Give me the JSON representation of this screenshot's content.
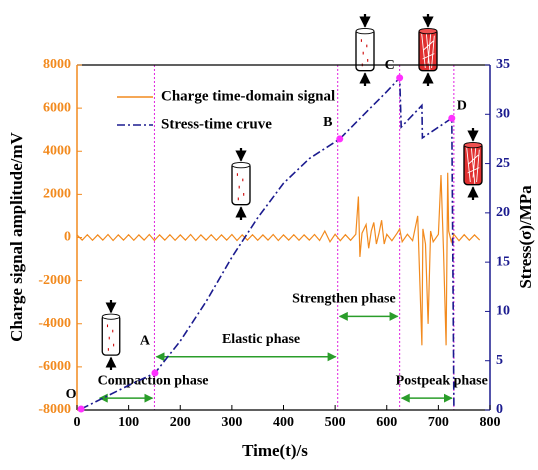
{
  "chart_data": {
    "type": "line",
    "x_label": "Time(t)/s",
    "y_label": "Charge signal amplitude/mV",
    "y2_label": "Stress(σ)/MPa",
    "xlim": [
      0,
      800
    ],
    "xticks": [
      0,
      100,
      200,
      300,
      400,
      500,
      600,
      700,
      800
    ],
    "ylim": [
      -8000,
      8000
    ],
    "yticks": [
      -8000,
      -6000,
      -4000,
      -2000,
      0,
      2000,
      4000,
      6000,
      8000
    ],
    "y2lim": [
      0,
      35
    ],
    "y2ticks": [
      0,
      5,
      10,
      15,
      20,
      25,
      30,
      35
    ],
    "legend": "upper left",
    "series": [
      {
        "name": "Charge time-domain signal",
        "color": "#f28a1e",
        "dash": "solid",
        "x": [
          0,
          10,
          20,
          30,
          40,
          50,
          60,
          70,
          80,
          90,
          100,
          110,
          120,
          130,
          140,
          150,
          160,
          170,
          180,
          190,
          200,
          210,
          220,
          230,
          240,
          250,
          260,
          270,
          280,
          290,
          300,
          310,
          320,
          330,
          340,
          350,
          360,
          370,
          380,
          390,
          400,
          410,
          420,
          430,
          440,
          450,
          460,
          470,
          480,
          490,
          500,
          510,
          520,
          530,
          540,
          545,
          548,
          552,
          560,
          565,
          570,
          575,
          580,
          585,
          590,
          595,
          600,
          610,
          620,
          625,
          630,
          640,
          650,
          660,
          668,
          670,
          675,
          680,
          685,
          690,
          700,
          705,
          710,
          715,
          718,
          720,
          725,
          730,
          740,
          750,
          760,
          770,
          780
        ],
        "values": [
          120,
          -120,
          130,
          -130,
          120,
          -120,
          140,
          -140,
          120,
          -120,
          130,
          -130,
          120,
          -120,
          140,
          -140,
          120,
          -120,
          130,
          -130,
          120,
          -120,
          140,
          -140,
          120,
          -120,
          130,
          -130,
          120,
          -120,
          140,
          -140,
          120,
          -120,
          130,
          -130,
          120,
          -120,
          140,
          -140,
          120,
          -120,
          130,
          -130,
          120,
          -120,
          140,
          -140,
          300,
          -200,
          150,
          -150,
          130,
          -130,
          150,
          1900,
          -900,
          200,
          600,
          -500,
          300,
          700,
          -300,
          200,
          800,
          -300,
          150,
          -150,
          200,
          400,
          -200,
          150,
          -150,
          1000,
          -5000,
          400,
          -300,
          -4000,
          300,
          -200,
          150,
          2900,
          -600,
          -5000,
          3000,
          300,
          -200,
          150,
          -150,
          130,
          -130,
          120,
          -120
        ]
      },
      {
        "name": "Stress-time cruve",
        "color": "#1b1b8f",
        "dash": "dash-dot",
        "axis": "y2",
        "x": [
          8,
          50,
          100,
          151,
          200,
          250,
          300,
          350,
          400,
          450,
          509,
          560,
          600,
          625,
          628,
          668,
          669,
          726,
          730
        ],
        "values": [
          0.1,
          1.2,
          2.5,
          3.75,
          7,
          11,
          15.5,
          19.5,
          23,
          25.5,
          27.5,
          30.2,
          32.3,
          33.7,
          28.7,
          30.9,
          27.6,
          29.6,
          0.3
        ]
      }
    ],
    "points": [
      {
        "label": "O",
        "x": 8,
        "value": 0.1
      },
      {
        "label": "A",
        "x": 151,
        "value": 3.75
      },
      {
        "label": "B",
        "x": 509,
        "value": 27.5
      },
      {
        "label": "C",
        "x": 625,
        "value": 33.7
      },
      {
        "label": "D",
        "x": 726,
        "value": 29.6
      }
    ],
    "phases": [
      {
        "label": "Compaction phase",
        "start": 40,
        "end": 150
      },
      {
        "label": "Elastic phase",
        "start": 150,
        "end": 505
      },
      {
        "label": "Strengthen phase",
        "start": 505,
        "end": 625
      },
      {
        "label": "Postpeak phase",
        "start": 625,
        "end": 730
      }
    ]
  }
}
